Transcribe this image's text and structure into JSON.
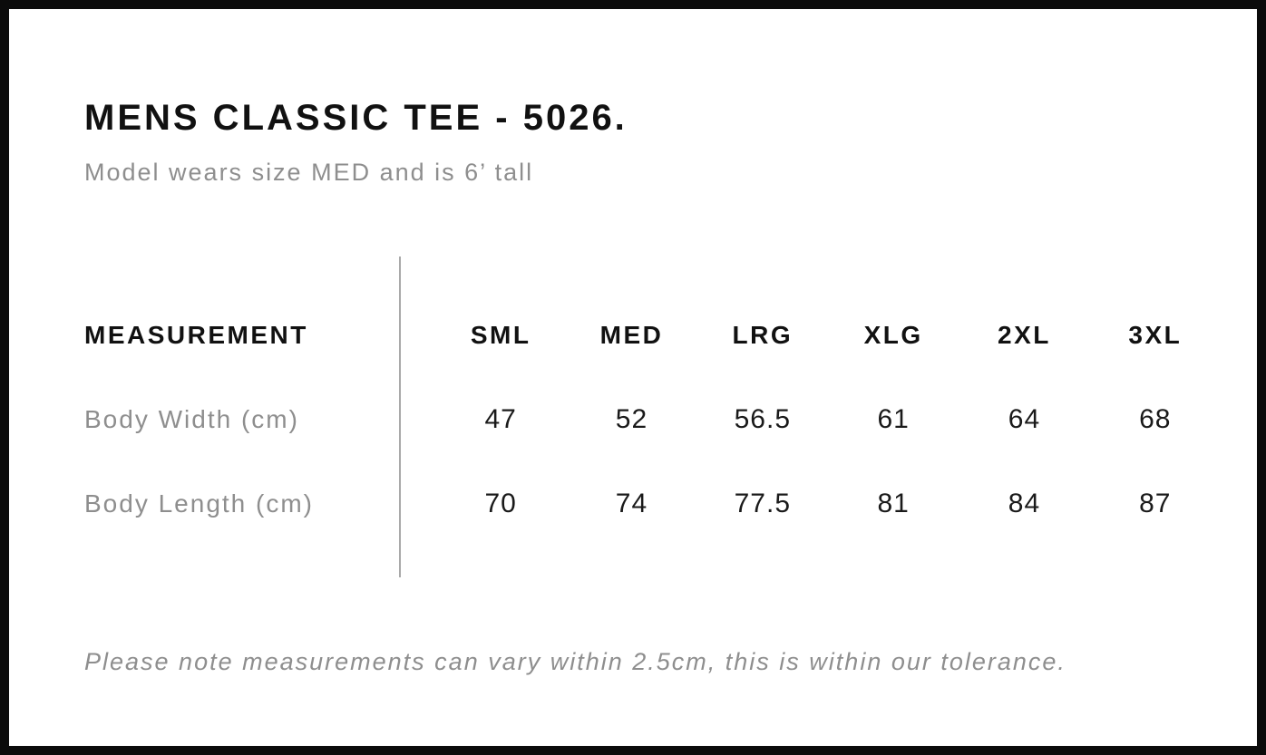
{
  "colors": {
    "frame_border": "#0b0b0b",
    "text_primary": "#111111",
    "text_muted": "#8e8e8e",
    "divider": "#a9a9a9",
    "background": "#ffffff"
  },
  "header": {
    "title": "MENS CLASSIC TEE - 5026.",
    "subtitle": "Model wears size MED and is 6’ tall"
  },
  "table": {
    "measurement_header": "MEASUREMENT",
    "size_headers": [
      "SML",
      "MED",
      "LRG",
      "XLG",
      "2XL",
      "3XL"
    ],
    "rows": [
      {
        "label": "Body Width (cm)",
        "values": [
          "47",
          "52",
          "56.5",
          "61",
          "64",
          "68"
        ]
      },
      {
        "label": "Body Length (cm)",
        "values": [
          "70",
          "74",
          "77.5",
          "81",
          "84",
          "87"
        ]
      }
    ]
  },
  "footer": {
    "note": "Please note measurements can vary within 2.5cm, this is within our tolerance."
  },
  "chart_data": {
    "type": "table",
    "title": "MENS CLASSIC TEE - 5026.",
    "subtitle": "Model wears size MED and is 6’ tall",
    "columns": [
      "MEASUREMENT",
      "SML",
      "MED",
      "LRG",
      "XLG",
      "2XL",
      "3XL"
    ],
    "rows": [
      {
        "label": "Body Width (cm)",
        "values": [
          47,
          52,
          56.5,
          61,
          64,
          68
        ]
      },
      {
        "label": "Body Length (cm)",
        "values": [
          70,
          74,
          77.5,
          81,
          84,
          87
        ]
      }
    ],
    "note": "Please note measurements can vary within 2.5cm, this is within our tolerance.",
    "layout": {
      "divider_between_label_and_sizes": true,
      "grid": "off",
      "legend": "none"
    }
  }
}
